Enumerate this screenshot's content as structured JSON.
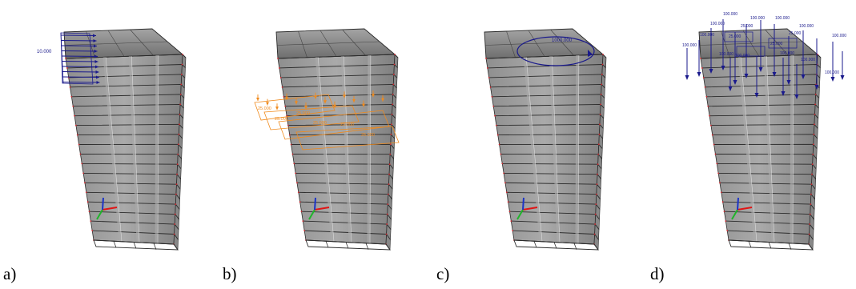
{
  "panels": [
    {
      "label": "a)",
      "load_text": "10.000"
    },
    {
      "label": "b)",
      "load_texts": [
        "25.000",
        "25.000",
        "25.000",
        "25.000",
        "25.000",
        "25.000"
      ]
    },
    {
      "label": "c)",
      "load_text": "1000.000"
    },
    {
      "label": "d)",
      "load_texts": [
        "100.000",
        "100.000",
        "100.000",
        "100.000",
        "100.000",
        "100.000",
        "100.000",
        "100.000",
        "100.000",
        "100.000",
        "100.000",
        "100.000",
        "100.000",
        "25.000",
        "25.000",
        "25.000",
        "25.000"
      ]
    }
  ],
  "colors": {
    "frame": "#2b2b2b",
    "slab": "#8a8a8a",
    "core": "#a9a9a9",
    "node": "#d8282f",
    "load_blue": "#1a1a8c",
    "load_orange": "#f08a1c",
    "axis_x": "#e01515",
    "axis_y": "#1fb52a",
    "axis_z": "#1c33c8"
  }
}
